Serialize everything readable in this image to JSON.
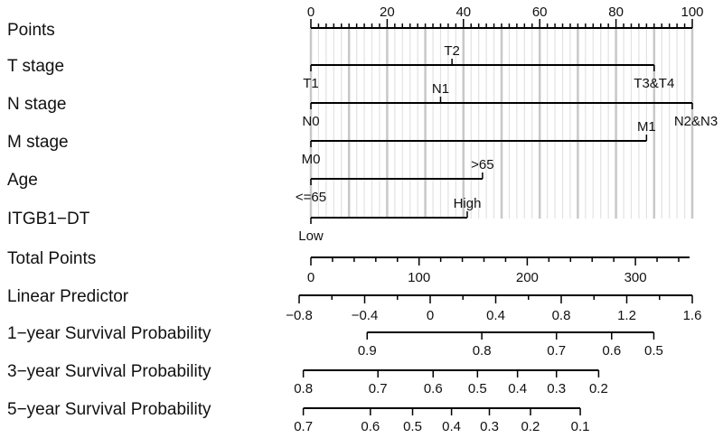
{
  "chart_data": {
    "type": "nomogram",
    "grid": true,
    "rows": [
      {
        "id": "points",
        "label": "Points",
        "kind": "axis",
        "range": [
          0,
          100
        ],
        "major_ticks": [
          0,
          20,
          40,
          60,
          80,
          100
        ],
        "tick_labels": [
          "0",
          "20",
          "40",
          "60",
          "80",
          "100"
        ],
        "minor_step": 2
      },
      {
        "id": "t-stage",
        "label": "T stage",
        "kind": "variable",
        "levels": [
          {
            "name": "T1",
            "points": 0,
            "label_side": "below"
          },
          {
            "name": "T2",
            "points": 37,
            "label_side": "above"
          },
          {
            "name": "T3&T4",
            "points": 90,
            "label_side": "below"
          }
        ]
      },
      {
        "id": "n-stage",
        "label": "N stage",
        "kind": "variable",
        "levels": [
          {
            "name": "N0",
            "points": 0,
            "label_side": "below"
          },
          {
            "name": "N1",
            "points": 34,
            "label_side": "above"
          },
          {
            "name": "N2&N3",
            "points": 100,
            "label_side": "below"
          }
        ]
      },
      {
        "id": "m-stage",
        "label": "M stage",
        "kind": "variable",
        "levels": [
          {
            "name": "M0",
            "points": 0,
            "label_side": "below"
          },
          {
            "name": "M1",
            "points": 88,
            "label_side": "above"
          }
        ]
      },
      {
        "id": "age",
        "label": "Age",
        "kind": "variable",
        "levels": [
          {
            "name": "<=65",
            "points": 0,
            "label_side": "below"
          },
          {
            "name": ">65",
            "points": 45,
            "label_side": "above"
          }
        ]
      },
      {
        "id": "itgb1-dt",
        "label": "ITGB1−DT",
        "kind": "variable",
        "levels": [
          {
            "name": "Low",
            "points": 0,
            "label_side": "below"
          },
          {
            "name": "High",
            "points": 41,
            "label_side": "above"
          }
        ]
      },
      {
        "id": "total-points",
        "label": "Total Points",
        "kind": "axis",
        "range": [
          0,
          350
        ],
        "major_ticks": [
          0,
          100,
          200,
          300
        ],
        "tick_labels": [
          "0",
          "100",
          "200",
          "300"
        ],
        "minor_step": 20
      },
      {
        "id": "linear-predictor",
        "label": "Linear Predictor",
        "kind": "axis",
        "range": [
          -0.8,
          1.6
        ],
        "major_ticks": [
          -0.8,
          -0.4,
          0,
          0.4,
          0.8,
          1.2,
          1.6
        ],
        "tick_labels": [
          "−0.8",
          "−0.4",
          "0",
          "0.4",
          "0.8",
          "1.2",
          "1.6"
        ],
        "minor_step": 0.2
      },
      {
        "id": "survival-1y",
        "label": "1−year Survival Probability",
        "kind": "probability",
        "ticks": [
          {
            "label": "0.9",
            "total_points": 52
          },
          {
            "label": "0.8",
            "total_points": 158
          },
          {
            "label": "0.7",
            "total_points": 227
          },
          {
            "label": "0.6",
            "total_points": 278
          },
          {
            "label": "0.5",
            "total_points": 317
          }
        ]
      },
      {
        "id": "survival-3y",
        "label": "3−year Survival Probability",
        "kind": "probability",
        "ticks": [
          {
            "label": "0.8",
            "total_points": -7
          },
          {
            "label": "0.7",
            "total_points": 62
          },
          {
            "label": "0.6",
            "total_points": 113
          },
          {
            "label": "0.5",
            "total_points": 154
          },
          {
            "label": "0.4",
            "total_points": 191
          },
          {
            "label": "0.3",
            "total_points": 227
          },
          {
            "label": "0.2",
            "total_points": 266
          }
        ]
      },
      {
        "id": "survival-5y",
        "label": "5−year Survival Probability",
        "kind": "probability",
        "ticks": [
          {
            "label": "0.7",
            "total_points": -7
          },
          {
            "label": "0.6",
            "total_points": 55
          },
          {
            "label": "0.5",
            "total_points": 94
          },
          {
            "label": "0.4",
            "total_points": 130
          },
          {
            "label": "0.3",
            "total_points": 165
          },
          {
            "label": "0.2",
            "total_points": 203
          },
          {
            "label": "0.1",
            "total_points": 249
          }
        ]
      }
    ]
  }
}
